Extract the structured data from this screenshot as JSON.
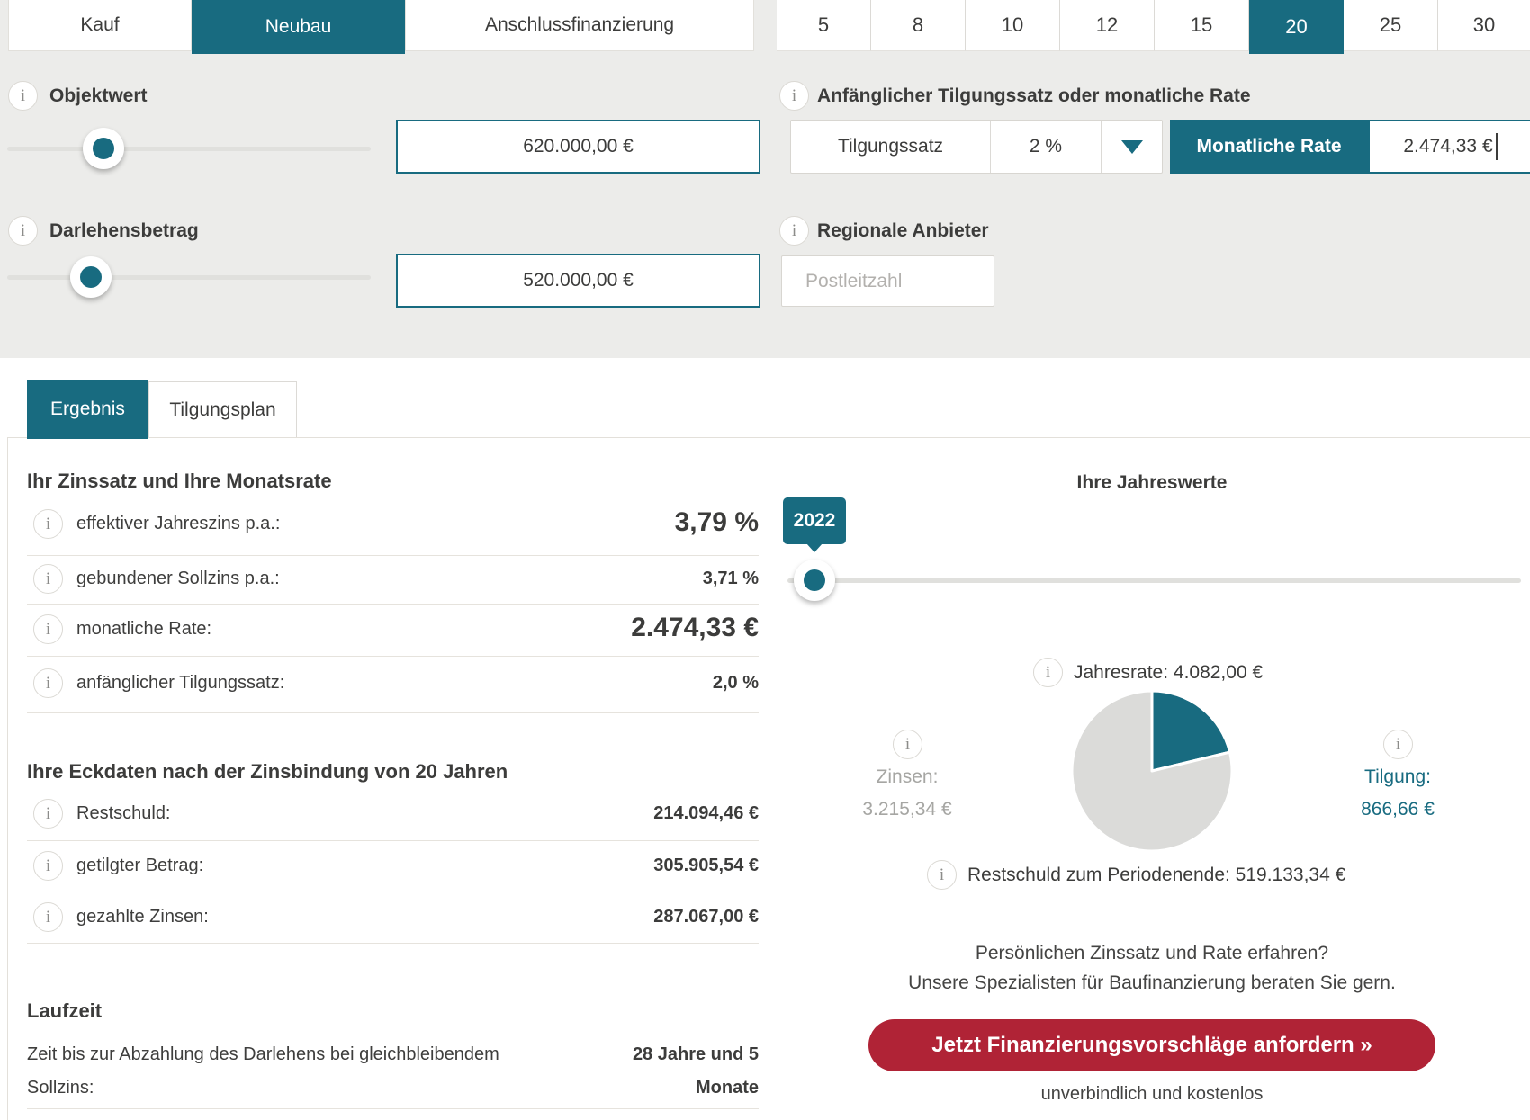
{
  "colors": {
    "teal": "#186B80",
    "red": "#B02336",
    "config_background": "#ECECEA",
    "pie_gray": "#DBDBD9",
    "text_dark": "#3C3C3B",
    "text_gray": "#A6A6A3"
  },
  "config": {
    "purpose_tabs": [
      {
        "label": "Kauf",
        "active": false
      },
      {
        "label": "Neubau",
        "active": true
      },
      {
        "label": "Anschlussfinanzierung",
        "active": false
      }
    ],
    "zinsbindung_years": [
      {
        "label": "5",
        "active": false
      },
      {
        "label": "8",
        "active": false
      },
      {
        "label": "10",
        "active": false
      },
      {
        "label": "12",
        "active": false
      },
      {
        "label": "15",
        "active": false
      },
      {
        "label": "20",
        "active": true
      },
      {
        "label": "25",
        "active": false
      },
      {
        "label": "30",
        "active": false
      }
    ],
    "objektwert": {
      "label": "Objektwert",
      "value": "620.000,00 €"
    },
    "darlehensbetrag": {
      "label": "Darlehensbetrag",
      "value": "520.000,00 €"
    },
    "tilgung": {
      "label": "Anfänglicher Tilgungssatz oder monatliche Rate",
      "mode_tilgungssatz": "Tilgungssatz",
      "tilgungssatz_value": "2 %",
      "mode_monatliche_rate": "Monatliche Rate",
      "monatliche_rate_value": "2.474,33 €"
    },
    "region": {
      "label": "Regionale Anbieter",
      "placeholder": "Postleitzahl"
    }
  },
  "results": {
    "tabs": [
      {
        "label": "Ergebnis",
        "active": true
      },
      {
        "label": "Tilgungsplan",
        "active": false
      }
    ],
    "zinssatz": {
      "title": "Ihr Zinssatz und Ihre Monatsrate",
      "rows": [
        {
          "label": "effektiver Jahreszins p.a.:",
          "value": "3,79 %",
          "emphasis": true
        },
        {
          "label": "gebundener Sollzins p.a.:",
          "value": "3,71 %",
          "emphasis": false
        },
        {
          "label": "monatliche Rate:",
          "value": "2.474,33 €",
          "emphasis": true
        },
        {
          "label": "anfänglicher Tilgungssatz:",
          "value": "2,0 %",
          "emphasis": false
        }
      ]
    },
    "eckdaten": {
      "title": "Ihre Eckdaten nach der Zinsbindung von 20 Jahren",
      "rows": [
        {
          "label": "Restschuld:",
          "value": "214.094,46 €"
        },
        {
          "label": "getilgter Betrag:",
          "value": "305.905,54 €"
        },
        {
          "label": "gezahlte Zinsen:",
          "value": "287.067,00 €"
        }
      ]
    },
    "laufzeit": {
      "title": "Laufzeit",
      "label": "Zeit bis zur Abzahlung des Darlehens bei gleichbleibendem Sollzins:",
      "value": "28 Jahre und 5 Monate"
    }
  },
  "jahreswerte": {
    "title": "Ihre Jahreswerte",
    "year": "2022",
    "jahresrate": "Jahresrate: 4.082,00 €",
    "zinsen_label": "Zinsen:",
    "zinsen_value": "3.215,34 €",
    "tilgung_label": "Tilgung:",
    "tilgung_value": "866,66 €",
    "restschuld": "Restschuld zum Periodenende: 519.133,34 €",
    "cta_line1": "Persönlichen Zinssatz und Rate erfahren?",
    "cta_line2": "Unsere Spezialisten für Baufinanzierung beraten Sie gern.",
    "cta_button": "Jetzt Finanzierungsvorschläge anfordern »",
    "cta_sub": "unverbindlich und kostenlos"
  },
  "chart_data": {
    "type": "pie",
    "title": "Ihre Jahreswerte",
    "year": 2022,
    "slices": [
      {
        "label": "Zinsen",
        "value": 3215.34,
        "color": "#DBDBD9"
      },
      {
        "label": "Tilgung",
        "value": 866.66,
        "color": "#186B80"
      }
    ],
    "annual_rate": 4082.0,
    "restschuld_period_end": 519133.34,
    "legend_position": "sides",
    "start_angle_deg": 0,
    "direction": "clockwise"
  }
}
